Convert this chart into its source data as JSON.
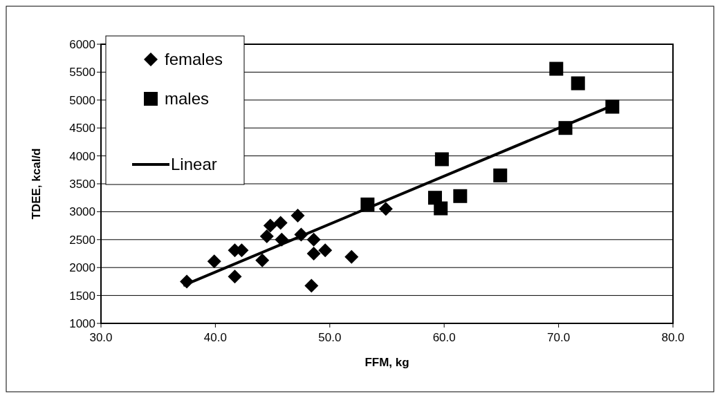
{
  "chart_data": {
    "type": "scatter",
    "xlabel": "FFM, kg",
    "ylabel": "TDEE, kcal/d",
    "xlim": [
      30,
      80
    ],
    "xticks": [
      {
        "value": 30,
        "label": "30.0"
      },
      {
        "value": 40,
        "label": "40.0"
      },
      {
        "value": 50,
        "label": "50.0"
      },
      {
        "value": 60,
        "label": "60.0"
      },
      {
        "value": 70,
        "label": "70.0"
      },
      {
        "value": 80,
        "label": "80.0"
      }
    ],
    "ylim": [
      1000,
      6000
    ],
    "yticks": [
      1000,
      1500,
      2000,
      2500,
      3000,
      3500,
      4000,
      4500,
      5000,
      5500,
      6000
    ],
    "grid": "y",
    "legend": "top left",
    "series": [
      {
        "name": "females",
        "type": "scatter",
        "marker": "diamond",
        "color": "#000000",
        "x": [
          37.5,
          39.9,
          41.7,
          42.3,
          41.7,
          44.1,
          44.5,
          44.8,
          45.7,
          45.8,
          47.2,
          47.5,
          48.6,
          48.6,
          49.6,
          48.4,
          51.9,
          54.9
        ],
        "values": [
          1750,
          2110,
          2310,
          2310,
          1840,
          2130,
          2560,
          2750,
          2800,
          2500,
          2930,
          2590,
          2500,
          2250,
          2310,
          1675,
          2190,
          3050
        ]
      },
      {
        "name": "males",
        "type": "scatter",
        "marker": "square",
        "color": "#000000",
        "x": [
          53.3,
          59.2,
          59.7,
          59.8,
          61.4,
          64.9,
          69.8,
          70.6,
          71.7,
          74.7
        ],
        "values": [
          3130,
          3250,
          3060,
          3940,
          3280,
          3650,
          5560,
          4500,
          5300,
          4880
        ]
      },
      {
        "name": "Linear",
        "type": "line",
        "marker": "none",
        "color": "#000000",
        "x": [
          37.2,
          74.7
        ],
        "values": [
          1680,
          4900
        ]
      }
    ]
  }
}
